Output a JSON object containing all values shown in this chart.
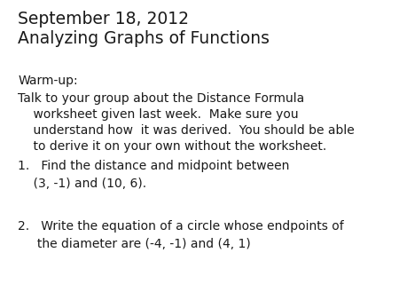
{
  "background_color": "#ffffff",
  "title_line1": "September 18, 2012",
  "title_line2": "Analyzing Graphs of Functions",
  "title_fontsize": 13.5,
  "body_fontsize": 10.0,
  "warmup_label": "Warm-up:",
  "warmup_line1": "Talk to your group about the Distance Formula",
  "warmup_line2": "    worksheet given last week.  Make sure you",
  "warmup_line3": "    understand how  it was derived.  You should be able",
  "warmup_line4": "    to derive it on your own without the worksheet.",
  "item1_line1": "1.   Find the distance and midpoint between",
  "item1_line2": "    (3, -1) and (10, 6).",
  "item2_line1": "2.   Write the equation of a circle whose endpoints of",
  "item2_line2": "     the diameter are (-4, -1) and (4, 1)",
  "text_color": "#1a1a1a",
  "font_family": "DejaVu Sans"
}
